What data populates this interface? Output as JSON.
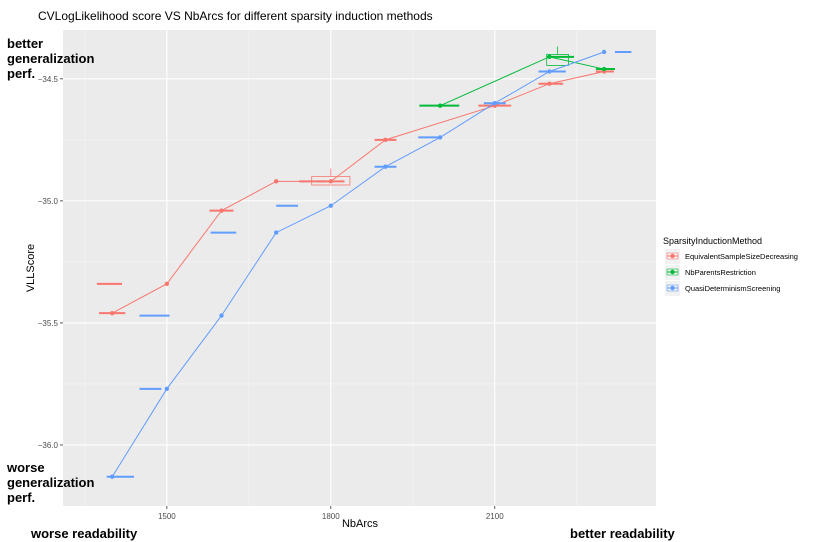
{
  "chart_data": {
    "type": "line",
    "title": "CVLogLikelihood score VS NbArcs for different sparsity induction methods",
    "xlabel": "NbArcs",
    "ylabel": "VLLScore",
    "xlim": [
      1310,
      2395
    ],
    "ylim": [
      -36.25,
      -34.3
    ],
    "x_ticks": [
      1500,
      1800,
      2100
    ],
    "y_ticks": [
      -34.5,
      -35.0,
      -35.5,
      -36.0
    ],
    "grid": true,
    "legend_title": "SparsityInductionMethod",
    "legend_position": "right",
    "series": [
      {
        "name": "EquivalentSampleSizeDecreasing",
        "color": "#F8766D",
        "x": [
          1400,
          1500,
          1600,
          1700,
          1800,
          1900,
          2100,
          2200,
          2300
        ],
        "y": [
          -35.46,
          -35.34,
          -35.04,
          -34.92,
          -34.92,
          -34.75,
          -34.61,
          -34.52,
          -34.47
        ],
        "box": [
          null,
          null,
          null,
          null,
          [
            1765,
            1835,
            -34.9,
            -34.935
          ],
          null,
          null,
          null,
          null
        ],
        "hbar": [
          [
            1376,
            1424
          ],
          [
            1372,
            1418
          ],
          [
            1578,
            1622
          ],
          [
            1742,
            1790
          ],
          [
            1775,
            1825
          ],
          [
            1880,
            1920
          ],
          [
            2070,
            2130
          ],
          [
            2180,
            2225
          ],
          [
            2285,
            2318
          ]
        ]
      },
      {
        "name": "NbParentsRestriction",
        "color": "#00BA38",
        "x": [
          2000,
          2200,
          2300
        ],
        "y": [
          -34.61,
          -34.41,
          -34.46
        ],
        "box": [
          null,
          [
            2195,
            2235,
            -34.4,
            -34.445
          ],
          null
        ],
        "hbar": [
          [
            1962,
            2035
          ],
          [
            2195,
            2245
          ],
          [
            2285,
            2320
          ]
        ]
      },
      {
        "name": "QuasiDeterminismScreening",
        "color": "#619CFF",
        "x": [
          1400,
          1500,
          1600,
          1700,
          1800,
          1900,
          2000,
          2100,
          2200,
          2300
        ],
        "y": [
          -36.13,
          -35.77,
          -35.47,
          -35.13,
          -35.02,
          -34.86,
          -34.74,
          -34.6,
          -34.47,
          -34.39
        ],
        "hbar": [
          [
            1390,
            1440
          ],
          [
            1450,
            1490
          ],
          [
            1450,
            1505
          ],
          [
            1580,
            1627
          ],
          [
            1700,
            1740
          ],
          [
            1880,
            1920
          ],
          [
            1960,
            2000
          ],
          [
            2080,
            2120
          ],
          [
            2180,
            2230
          ],
          [
            2320,
            2350
          ]
        ]
      }
    ]
  },
  "annotations": {
    "top_left": [
      "better",
      "generalization",
      "perf."
    ],
    "bottom_left": [
      "worse",
      "generalization",
      "perf."
    ],
    "bottom_x_left": "worse readability",
    "bottom_x_right": "better readability"
  }
}
